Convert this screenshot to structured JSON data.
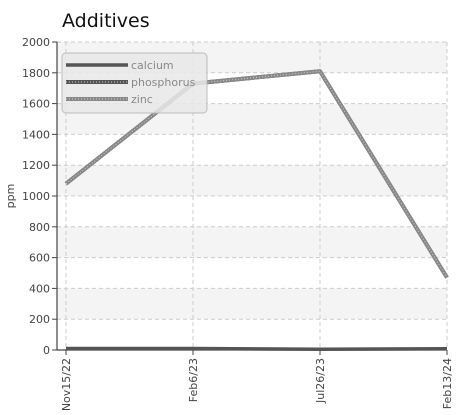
{
  "chart_data": {
    "type": "line",
    "title": "Additives",
    "xlabel": "",
    "ylabel": "ppm",
    "x": [
      "Nov15/22",
      "Feb6/23",
      "Jul26/23",
      "Feb13/24"
    ],
    "ylim": [
      0,
      2000
    ],
    "yticks": [
      "0",
      "200",
      "400",
      "600",
      "800",
      "1000",
      "1200",
      "1400",
      "1600",
      "1800",
      "2000"
    ],
    "grid": true,
    "legend": "top-left",
    "series": [
      {
        "name": "calcium",
        "values": [
          10,
          10,
          5,
          8
        ],
        "color": "#555555",
        "style": "solid"
      },
      {
        "name": "phosphorus",
        "values": [
          1080,
          1730,
          1810,
          470
        ],
        "color": "#555555",
        "style": "dotted"
      },
      {
        "name": "zinc",
        "values": [
          1080,
          1730,
          1810,
          470
        ],
        "color": "#888888",
        "style": "dotted"
      }
    ]
  }
}
